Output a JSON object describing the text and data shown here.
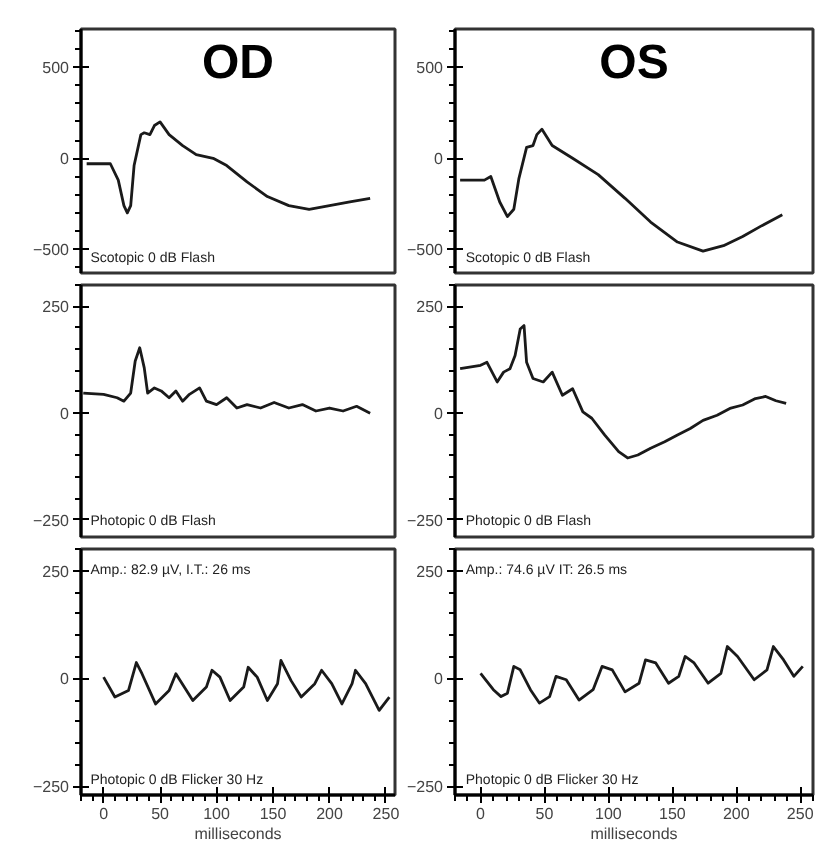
{
  "chart_data": [
    {
      "type": "line",
      "title": "OD",
      "color": "#1a1a1a",
      "xlim": [
        -20,
        258
      ],
      "ylim": [
        -630,
        710
      ],
      "yticks": [
        -500,
        0,
        500
      ],
      "tick_labels": "y",
      "annotations": [
        "Scotopic   0 dB Flash"
      ],
      "x": [
        -15,
        6,
        13,
        18,
        21,
        24,
        27,
        33,
        36,
        41,
        45,
        50,
        58,
        70,
        82,
        97,
        109,
        127,
        145,
        164,
        182,
        200,
        218,
        236
      ],
      "values": [
        -30,
        -30,
        -120,
        -260,
        -300,
        -260,
        -40,
        130,
        140,
        130,
        180,
        200,
        130,
        70,
        20,
        0,
        -40,
        -130,
        -210,
        -260,
        -280,
        -260,
        -240,
        -220
      ]
    },
    {
      "type": "line",
      "title": "OS",
      "color": "#1a1a1a",
      "xlim": [
        -20,
        260
      ],
      "ylim": [
        -630,
        710
      ],
      "yticks": [
        -500,
        0,
        500
      ],
      "tick_labels": "y",
      "annotations": [
        "Scotopic   0 dB Flash"
      ],
      "x": [
        -16,
        3,
        8,
        15,
        21,
        26,
        30,
        36,
        41,
        44,
        48,
        56,
        72,
        92,
        113,
        133,
        154,
        174,
        190,
        205,
        220,
        236
      ],
      "values": [
        -120,
        -120,
        -100,
        -240,
        -320,
        -280,
        -110,
        60,
        70,
        130,
        160,
        70,
        0,
        -90,
        -220,
        -350,
        -460,
        -510,
        -480,
        -430,
        -370,
        -310
      ]
    },
    {
      "type": "line",
      "color": "#1a1a1a",
      "xlim": [
        -20,
        258
      ],
      "ylim": [
        -290,
        300
      ],
      "yticks": [
        -250,
        0,
        250
      ],
      "tick_labels": "y",
      "annotations": [
        "Photopic   0 dB Flash"
      ],
      "x": [
        -18,
        0,
        12,
        18,
        24,
        28,
        32,
        36,
        39,
        45,
        51,
        58,
        64,
        70,
        76,
        85,
        91,
        100,
        109,
        118,
        127,
        139,
        151,
        164,
        176,
        188,
        200,
        212,
        224,
        236
      ],
      "values": [
        47,
        44,
        36,
        28,
        47,
        122,
        153,
        106,
        47,
        59,
        52,
        36,
        52,
        28,
        44,
        59,
        28,
        20,
        36,
        12,
        20,
        12,
        25,
        12,
        20,
        5,
        12,
        5,
        16,
        0
      ]
    },
    {
      "type": "line",
      "color": "#1a1a1a",
      "xlim": [
        -20,
        260
      ],
      "ylim": [
        -290,
        300
      ],
      "yticks": [
        -250,
        0,
        250
      ],
      "tick_labels": "y",
      "annotations": [
        "Photopic   0 dB Flash"
      ],
      "x": [
        -16,
        0,
        5,
        13,
        18,
        23,
        27,
        31,
        34,
        36,
        41,
        49,
        56,
        64,
        72,
        80,
        87,
        97,
        108,
        115,
        123,
        133,
        144,
        154,
        164,
        174,
        185,
        195,
        205,
        215,
        223,
        231,
        239
      ],
      "values": [
        104,
        112,
        119,
        73,
        96,
        104,
        135,
        197,
        205,
        119,
        81,
        73,
        96,
        42,
        57,
        3,
        -12,
        -51,
        -90,
        -105,
        -98,
        -82,
        -67,
        -51,
        -36,
        -17,
        -5,
        11,
        19,
        34,
        39,
        29,
        23
      ]
    },
    {
      "type": "line",
      "color": "#1a1a1a",
      "xlim": [
        -20,
        258
      ],
      "ylim": [
        -270,
        300
      ],
      "yticks": [
        -250,
        0,
        250
      ],
      "xticks": [
        0,
        50,
        100,
        150,
        200,
        250
      ],
      "xlabel": "milliseconds",
      "annotations": [
        "Amp.: 82.9 µV, I.T.: 26 ms",
        "Photopic   0 dB Flicker 30 Hz"
      ],
      "x": [
        0,
        10,
        22,
        29,
        34,
        46,
        58,
        64,
        79,
        91,
        96,
        103,
        112,
        124,
        128,
        136,
        145,
        154,
        157,
        166,
        175,
        187,
        193,
        202,
        211,
        220,
        223,
        232,
        244,
        253
      ],
      "values": [
        3,
        -43,
        -28,
        37,
        11,
        -59,
        -28,
        11,
        -51,
        -20,
        19,
        3,
        -51,
        -20,
        26,
        3,
        -51,
        -12,
        42,
        -5,
        -43,
        -12,
        19,
        -12,
        -59,
        -12,
        19,
        -12,
        -74,
        -43
      ]
    },
    {
      "type": "line",
      "color": "#1a1a1a",
      "xlim": [
        -20,
        260
      ],
      "ylim": [
        -270,
        300
      ],
      "yticks": [
        -250,
        0,
        250
      ],
      "xticks": [
        0,
        50,
        100,
        150,
        200,
        250
      ],
      "xlabel": "milliseconds",
      "annotations": [
        "Amp.: 74.6 µV  IT: 26.5 ms",
        "Photopic   0 dB Flicker 30 Hz"
      ],
      "x": [
        0,
        10,
        16,
        21,
        26,
        31,
        39,
        46,
        54,
        59,
        67,
        77,
        88,
        95,
        103,
        113,
        124,
        129,
        137,
        147,
        155,
        160,
        167,
        178,
        188,
        193,
        201,
        214,
        224,
        229,
        237,
        245,
        252
      ],
      "values": [
        12,
        -26,
        -42,
        -34,
        28,
        20,
        -26,
        -57,
        -42,
        5,
        -3,
        -50,
        -26,
        28,
        20,
        -31,
        -11,
        43,
        36,
        -11,
        5,
        51,
        36,
        -11,
        12,
        74,
        51,
        -3,
        20,
        74,
        43,
        5,
        28
      ]
    }
  ]
}
